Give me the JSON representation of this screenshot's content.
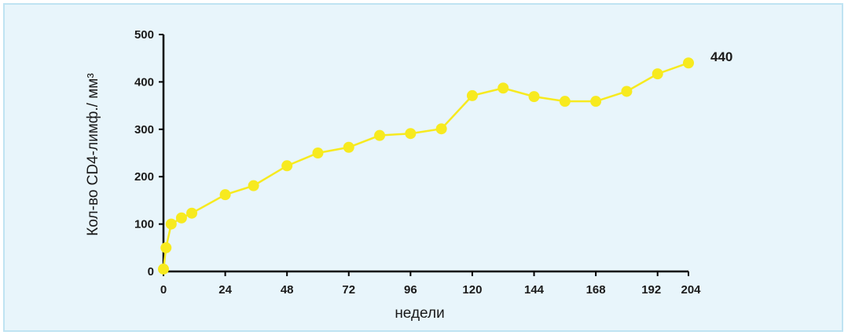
{
  "chart_data": {
    "type": "line",
    "title": "",
    "xlabel": "недели",
    "ylabel": "Кол-во CD4-лимф./ мм³",
    "xlim": [
      0,
      204
    ],
    "ylim": [
      0,
      500
    ],
    "xticks": [
      0,
      24,
      48,
      72,
      96,
      120,
      144,
      168,
      192,
      204
    ],
    "yticks": [
      0,
      100,
      200,
      300,
      400,
      500
    ],
    "grid": false,
    "series": [
      {
        "x": [
          0,
          1,
          3,
          7,
          11,
          24,
          35,
          48,
          60,
          72,
          84,
          96,
          108,
          120,
          132,
          144,
          156,
          168,
          180,
          192,
          204
        ],
        "y": [
          5,
          50,
          100,
          113,
          123,
          162,
          181,
          223,
          250,
          262,
          287,
          291,
          301,
          371,
          387,
          369,
          359,
          359,
          380,
          417,
          440
        ],
        "color": "#f7ea1f"
      }
    ],
    "annotations": [
      {
        "text": "440",
        "x": 204,
        "y": 440
      }
    ]
  }
}
